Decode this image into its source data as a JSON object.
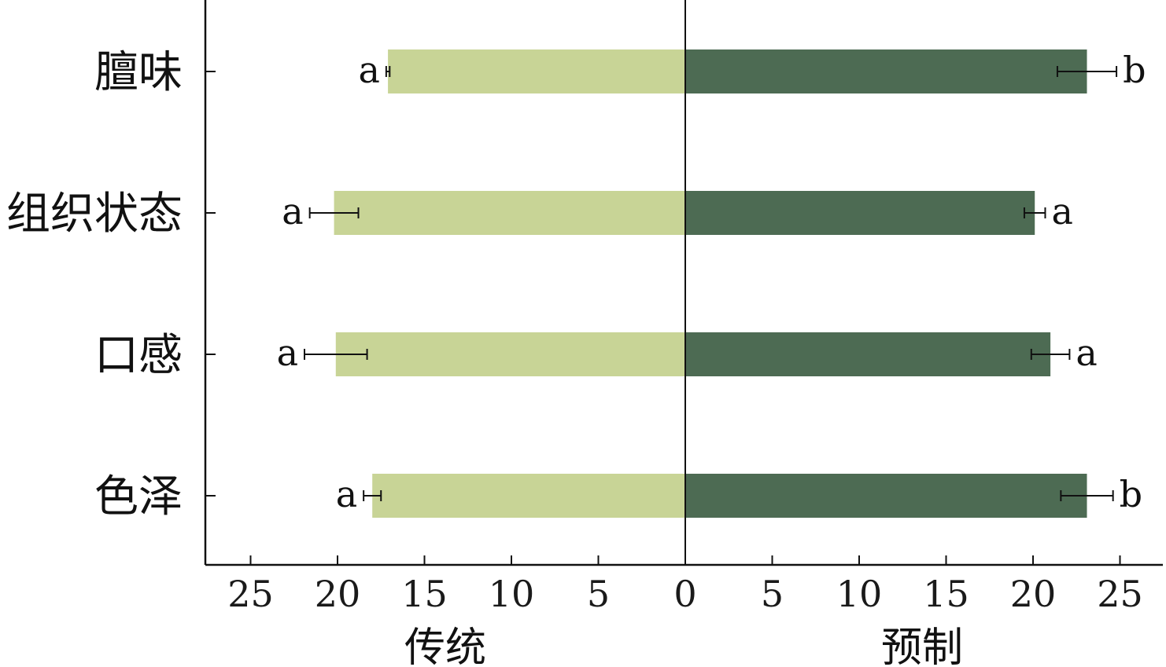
{
  "chart_data": {
    "type": "bar",
    "orientation": "horizontal-diverging",
    "categories": [
      "膻味",
      "组织状态",
      "口感",
      "色泽"
    ],
    "series": [
      {
        "name": "传统",
        "direction": "left",
        "color": "#c8d496",
        "values": [
          17.1,
          20.2,
          20.1,
          18.0
        ],
        "errors": [
          0.1,
          1.4,
          1.8,
          0.5
        ],
        "significance": [
          "a",
          "a",
          "a",
          "a"
        ]
      },
      {
        "name": "预制",
        "direction": "right",
        "color": "#4d6b53",
        "values": [
          23.1,
          20.1,
          21.0,
          23.1
        ],
        "errors": [
          1.7,
          0.6,
          1.1,
          1.5
        ],
        "significance": [
          "b",
          "a",
          "a",
          "b"
        ]
      }
    ],
    "xlim": [
      -25,
      25
    ],
    "x_ticks": [
      25,
      20,
      15,
      10,
      5,
      0,
      5,
      10,
      15,
      20,
      25
    ],
    "xlabel_left": "传统",
    "xlabel_right": "预制",
    "grid": false
  }
}
